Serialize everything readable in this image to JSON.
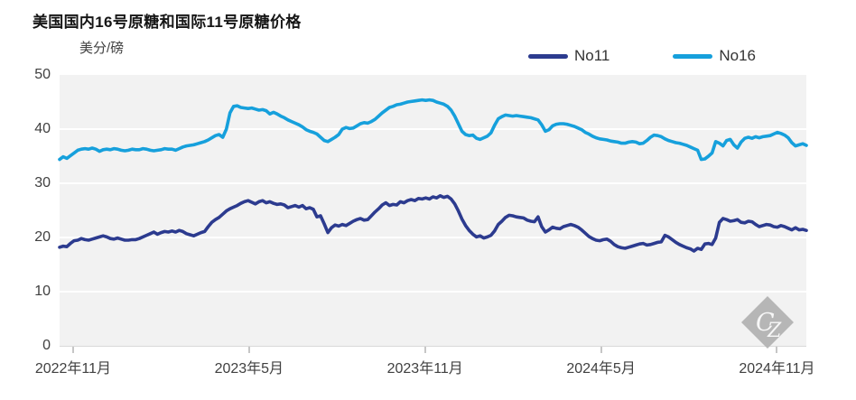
{
  "chart": {
    "title": "美国国内16号原糖和国际11号原糖价格",
    "unit_label": "美分/磅",
    "watermark_text": "CZ"
  },
  "colors": {
    "plot_bg": "#f2f2f2",
    "gridline": "#ffffff",
    "axis_text": "#404040",
    "title_text": "#161616",
    "tick_mark": "#c6c6c6",
    "watermark": "#b6b6b6",
    "no11": "#2C3B8F",
    "no16": "#16A0DC"
  },
  "chart_data": {
    "type": "line",
    "title": "美国国内16号原糖和国际11号原糖价格",
    "ylabel": "美分/磅",
    "ylim": [
      0,
      50
    ],
    "y_ticks": [
      0,
      10,
      20,
      30,
      40,
      50
    ],
    "grid": "horizontal white gridlines on light-gray panel",
    "legend_position": "top-right",
    "x_unit": "months since 2022-11",
    "x_start": -0.46,
    "x_step": 0.1236,
    "x_ticks": [
      {
        "pos": 0,
        "label": "2022年11月"
      },
      {
        "pos": 6,
        "label": "2023年5月"
      },
      {
        "pos": 12,
        "label": "2023年11月"
      },
      {
        "pos": 18,
        "label": "2024年5月"
      },
      {
        "pos": 24,
        "label": "2024年11月"
      }
    ],
    "series": [
      {
        "name": "No11",
        "color": "#2C3B8F",
        "values": [
          18.2,
          18.4,
          18.3,
          18.9,
          19.4,
          19.5,
          19.8,
          19.6,
          19.5,
          19.7,
          19.9,
          20.1,
          20.3,
          20.1,
          19.8,
          19.7,
          19.9,
          19.7,
          19.5,
          19.5,
          19.6,
          19.6,
          19.8,
          20.1,
          20.4,
          20.7,
          21.0,
          20.6,
          20.9,
          21.1,
          21.0,
          21.2,
          21.0,
          21.3,
          21.1,
          20.7,
          20.5,
          20.3,
          20.6,
          20.9,
          21.1,
          22.0,
          22.8,
          23.3,
          23.7,
          24.3,
          24.9,
          25.3,
          25.6,
          25.9,
          26.3,
          26.6,
          26.8,
          26.5,
          26.2,
          26.6,
          26.8,
          26.4,
          26.6,
          26.3,
          26.1,
          26.2,
          26.0,
          25.5,
          25.7,
          25.9,
          25.6,
          25.9,
          25.3,
          25.5,
          25.2,
          23.8,
          24.0,
          22.5,
          20.9,
          21.8,
          22.3,
          22.1,
          22.4,
          22.2,
          22.6,
          23.0,
          23.3,
          23.5,
          23.2,
          23.3,
          24.0,
          24.7,
          25.3,
          26.0,
          26.4,
          25.9,
          26.1,
          26.0,
          26.6,
          26.4,
          26.8,
          27.0,
          26.8,
          27.2,
          27.1,
          27.3,
          27.1,
          27.5,
          27.3,
          27.7,
          27.4,
          27.6,
          27.1,
          26.2,
          24.9,
          23.4,
          22.2,
          21.3,
          20.6,
          20.1,
          20.3,
          19.9,
          20.1,
          20.4,
          21.2,
          22.4,
          23.0,
          23.7,
          24.1,
          24.0,
          23.8,
          23.7,
          23.6,
          23.2,
          23.0,
          22.9,
          23.8,
          22.0,
          21.0,
          21.4,
          21.9,
          21.7,
          21.6,
          22.0,
          22.2,
          22.4,
          22.2,
          21.9,
          21.4,
          20.8,
          20.2,
          19.8,
          19.5,
          19.4,
          19.6,
          19.7,
          19.3,
          18.7,
          18.3,
          18.1,
          18.0,
          18.2,
          18.4,
          18.6,
          18.8,
          18.9,
          18.6,
          18.7,
          18.9,
          19.1,
          19.2,
          20.4,
          20.1,
          19.6,
          19.1,
          18.7,
          18.4,
          18.1,
          17.9,
          17.5,
          18.0,
          17.8,
          18.8,
          18.9,
          18.7,
          19.9,
          22.8,
          23.5,
          23.3,
          23.0,
          23.1,
          23.3,
          22.8,
          22.7,
          23.0,
          22.9,
          22.4,
          22.0,
          22.2,
          22.4,
          22.3,
          22.0,
          21.9,
          22.2,
          22.0,
          21.7,
          21.4,
          21.8,
          21.4,
          21.5,
          21.3
        ]
      },
      {
        "name": "No16",
        "color": "#16A0DC",
        "values": [
          34.4,
          34.9,
          34.6,
          35.1,
          35.6,
          36.1,
          36.3,
          36.4,
          36.3,
          36.5,
          36.3,
          35.9,
          36.2,
          36.3,
          36.2,
          36.4,
          36.3,
          36.1,
          36.0,
          36.1,
          36.3,
          36.2,
          36.2,
          36.4,
          36.3,
          36.1,
          36.0,
          36.1,
          36.2,
          36.4,
          36.3,
          36.3,
          36.1,
          36.4,
          36.7,
          36.9,
          37.0,
          37.1,
          37.3,
          37.5,
          37.7,
          38.0,
          38.4,
          38.8,
          39.0,
          38.5,
          40.0,
          43.0,
          44.2,
          44.3,
          44.0,
          43.9,
          43.8,
          43.9,
          43.7,
          43.5,
          43.6,
          43.4,
          42.8,
          43.1,
          42.8,
          42.4,
          42.1,
          41.7,
          41.4,
          41.1,
          40.8,
          40.4,
          39.9,
          39.6,
          39.4,
          39.1,
          38.5,
          37.9,
          37.7,
          38.1,
          38.5,
          39.0,
          40.0,
          40.3,
          40.1,
          40.2,
          40.6,
          41.0,
          41.2,
          41.1,
          41.4,
          41.8,
          42.4,
          43.0,
          43.5,
          44.0,
          44.2,
          44.5,
          44.6,
          44.8,
          45.0,
          45.1,
          45.2,
          45.3,
          45.4,
          45.3,
          45.4,
          45.3,
          45.0,
          44.8,
          44.6,
          44.2,
          43.5,
          42.4,
          41.0,
          39.6,
          39.0,
          38.8,
          38.9,
          38.3,
          38.1,
          38.4,
          38.7,
          39.3,
          40.7,
          41.9,
          42.3,
          42.6,
          42.5,
          42.4,
          42.5,
          42.4,
          42.3,
          42.2,
          42.1,
          41.9,
          41.7,
          40.8,
          39.6,
          39.9,
          40.6,
          40.9,
          41.0,
          41.0,
          40.9,
          40.7,
          40.5,
          40.2,
          39.9,
          39.4,
          39.1,
          38.7,
          38.4,
          38.2,
          38.1,
          38.0,
          37.8,
          37.7,
          37.6,
          37.4,
          37.4,
          37.6,
          37.7,
          37.6,
          37.3,
          37.4,
          37.9,
          38.5,
          38.9,
          38.8,
          38.6,
          38.2,
          37.9,
          37.7,
          37.5,
          37.4,
          37.2,
          37.0,
          36.7,
          36.4,
          36.1,
          34.4,
          34.5,
          35.0,
          35.6,
          37.7,
          37.4,
          36.9,
          37.9,
          38.1,
          37.1,
          36.5,
          37.6,
          38.3,
          38.5,
          38.3,
          38.6,
          38.4,
          38.6,
          38.7,
          38.8,
          39.1,
          39.4,
          39.2,
          38.9,
          38.4,
          37.5,
          36.9,
          37.1,
          37.3,
          37.0
        ]
      }
    ]
  }
}
